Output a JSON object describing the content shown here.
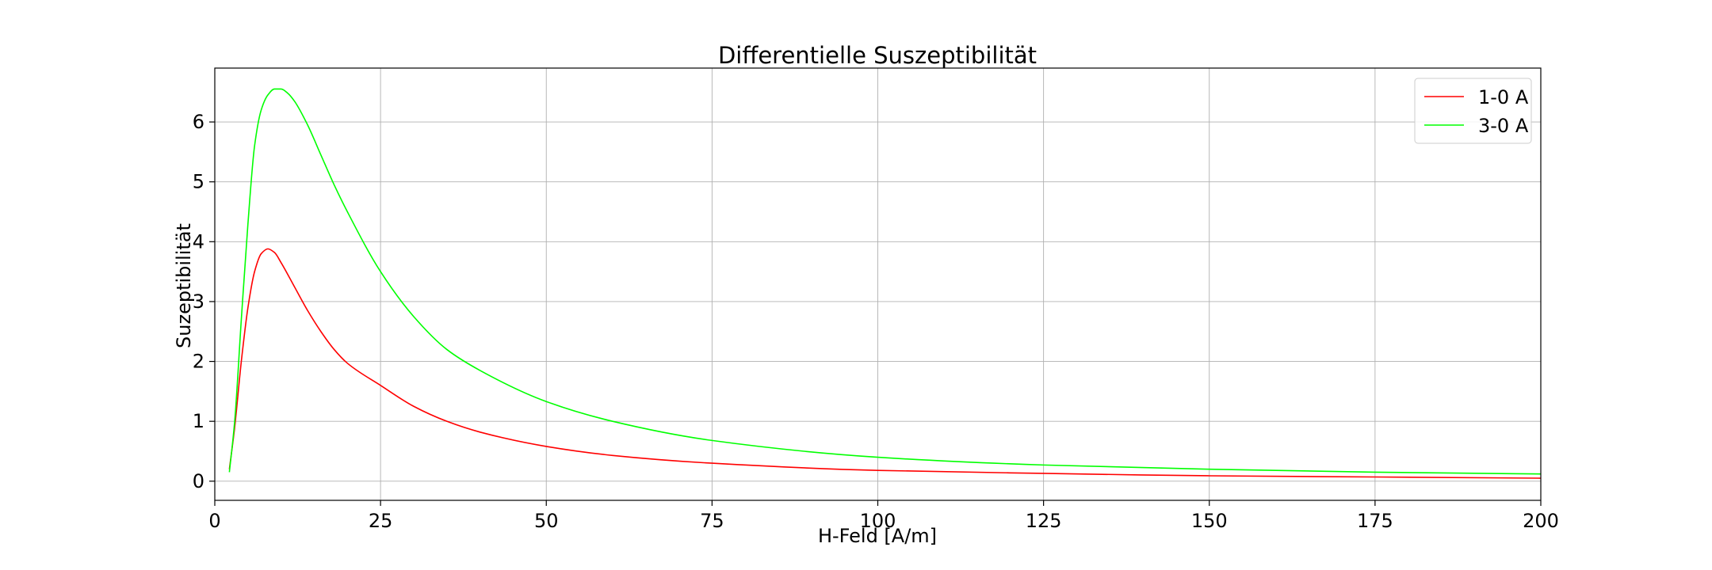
{
  "chart_data": {
    "type": "line",
    "title": "Differentielle Suszeptibilität",
    "xlabel": "H-Feld [A/m]",
    "ylabel": "Suzeptibilität",
    "xlim": [
      0,
      200
    ],
    "ylim": [
      -0.32,
      6.9
    ],
    "xticks": [
      0,
      25,
      50,
      75,
      100,
      125,
      150,
      175,
      200
    ],
    "yticks": [
      0,
      1,
      2,
      3,
      4,
      5,
      6
    ],
    "grid": true,
    "legend_position": "top-right",
    "series": [
      {
        "name": "1-0 A",
        "color": "#ff0000",
        "x": [
          2.2,
          3,
          4,
          5,
          6,
          7,
          8,
          9,
          10,
          12,
          14,
          16,
          18,
          20,
          25,
          30,
          35,
          40,
          50,
          60,
          75,
          100,
          125,
          150,
          175,
          200
        ],
        "y": [
          0.2,
          0.9,
          2.0,
          2.9,
          3.5,
          3.8,
          3.88,
          3.82,
          3.65,
          3.25,
          2.85,
          2.5,
          2.2,
          1.97,
          1.6,
          1.25,
          1.0,
          0.82,
          0.58,
          0.43,
          0.3,
          0.18,
          0.13,
          0.09,
          0.07,
          0.05
        ]
      },
      {
        "name": "3-0 A",
        "color": "#00ff00",
        "x": [
          2.2,
          3,
          4,
          5,
          6,
          7,
          8,
          9,
          10,
          11,
          12,
          14,
          16,
          18,
          20,
          25,
          30,
          35,
          40,
          50,
          60,
          75,
          100,
          125,
          150,
          175,
          200
        ],
        "y": [
          0.15,
          1.0,
          2.7,
          4.3,
          5.6,
          6.2,
          6.45,
          6.55,
          6.55,
          6.48,
          6.35,
          5.95,
          5.45,
          4.95,
          4.5,
          3.5,
          2.75,
          2.2,
          1.85,
          1.33,
          1.0,
          0.68,
          0.4,
          0.27,
          0.2,
          0.15,
          0.12
        ]
      }
    ]
  }
}
